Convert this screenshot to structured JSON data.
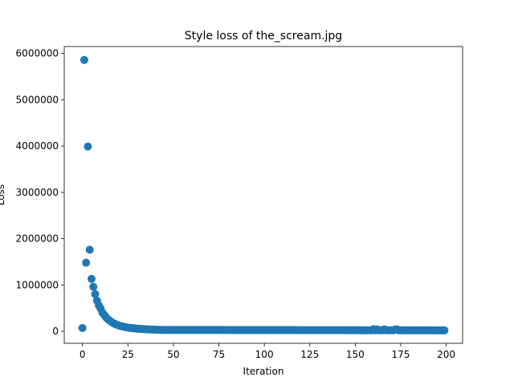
{
  "chart_data": {
    "type": "scatter",
    "title": "Style loss of the_scream.jpg",
    "xlabel": "Iteration",
    "ylabel": "Loss",
    "xlim": [
      -10,
      209
    ],
    "ylim": [
      -260000,
      6150000
    ],
    "xticks": [
      0,
      25,
      50,
      75,
      100,
      125,
      150,
      175,
      200
    ],
    "yticks": [
      0,
      1000000,
      2000000,
      3000000,
      4000000,
      5000000,
      6000000
    ],
    "grid": false,
    "legend": "none",
    "marker_color": "#1f77b4",
    "head_points": [
      [
        0,
        70000
      ],
      [
        1,
        5860000
      ],
      [
        2,
        1480000
      ],
      [
        3,
        3990000
      ],
      [
        4,
        1760000
      ],
      [
        5,
        1130000
      ],
      [
        6,
        960000
      ],
      [
        7,
        800000
      ],
      [
        8,
        660000
      ],
      [
        9,
        560000
      ],
      [
        10,
        490000
      ],
      [
        11,
        400000
      ],
      [
        12,
        350000
      ],
      [
        13,
        300000
      ],
      [
        14,
        260000
      ],
      [
        15,
        230000
      ],
      [
        16,
        200000
      ],
      [
        17,
        175000
      ],
      [
        18,
        155000
      ],
      [
        19,
        140000
      ],
      [
        20,
        125000
      ],
      [
        21,
        113000
      ],
      [
        22,
        103000
      ],
      [
        23,
        94000
      ],
      [
        24,
        87000
      ],
      [
        25,
        80000
      ],
      [
        26,
        74000
      ],
      [
        27,
        69000
      ],
      [
        28,
        64000
      ],
      [
        29,
        60000
      ],
      [
        30,
        56000
      ],
      [
        31,
        53000
      ],
      [
        32,
        50000
      ],
      [
        33,
        47000
      ],
      [
        34,
        45000
      ],
      [
        35,
        43000
      ],
      [
        36,
        41000
      ],
      [
        37,
        39000
      ],
      [
        38,
        37500
      ],
      [
        39,
        36000
      ],
      [
        40,
        34500
      ],
      [
        41,
        33000
      ],
      [
        42,
        32000
      ],
      [
        43,
        31000
      ],
      [
        44,
        30000
      ]
    ],
    "tail": {
      "x_start": 45,
      "x_end": 199,
      "y_start": 29000,
      "y_end": 20000
    },
    "bumps": [
      [
        160,
        45000
      ],
      [
        162,
        42000
      ],
      [
        166,
        40000
      ],
      [
        172,
        42000
      ],
      [
        173,
        40000
      ]
    ]
  }
}
